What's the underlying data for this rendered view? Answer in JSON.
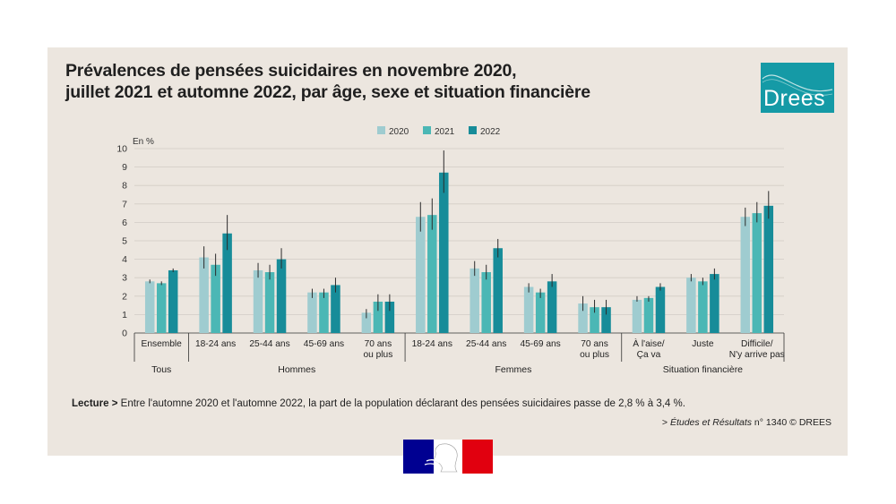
{
  "title": {
    "line1": "Prévalences de pensées suicidaires en novembre 2020,",
    "line2": "juillet 2021 et automne 2022, par âge, sexe et situation financière"
  },
  "logo": {
    "text": "Drees",
    "icon": "drees-logo"
  },
  "colors": {
    "s2020": "#9fccd0",
    "s2021": "#4bb7b5",
    "s2022": "#178c99",
    "error": "#2b2b2b",
    "grid": "#d2ccc5",
    "background": "#ece6df"
  },
  "chart_data": {
    "type": "bar",
    "ylabel": "En %",
    "ylim": [
      0,
      10
    ],
    "yticks": [
      0,
      1,
      2,
      3,
      4,
      5,
      6,
      7,
      8,
      9,
      10
    ],
    "legend": [
      "2020",
      "2021",
      "2022"
    ],
    "legend_position": "top-center",
    "groups": [
      {
        "label": "Tous",
        "categories": [
          {
            "label": [
              "Ensemble"
            ],
            "values": [
              2.8,
              2.7,
              3.4
            ],
            "errors": [
              [
                2.7,
                2.9
              ],
              [
                2.6,
                2.8
              ],
              [
                3.3,
                3.5
              ]
            ]
          }
        ]
      },
      {
        "label": "Hommes",
        "categories": [
          {
            "label": [
              "18-24 ans"
            ],
            "values": [
              4.1,
              3.7,
              5.4
            ],
            "errors": [
              [
                3.5,
                4.7
              ],
              [
                3.1,
                4.3
              ],
              [
                4.5,
                6.4
              ]
            ]
          },
          {
            "label": [
              "25-44 ans"
            ],
            "values": [
              3.4,
              3.3,
              4.0
            ],
            "errors": [
              [
                3.0,
                3.8
              ],
              [
                2.9,
                3.7
              ],
              [
                3.5,
                4.6
              ]
            ]
          },
          {
            "label": [
              "45-69 ans"
            ],
            "values": [
              2.2,
              2.2,
              2.6
            ],
            "errors": [
              [
                1.9,
                2.4
              ],
              [
                1.9,
                2.4
              ],
              [
                2.2,
                3.0
              ]
            ]
          },
          {
            "label": [
              "70 ans",
              "ou plus"
            ],
            "values": [
              1.1,
              1.7,
              1.7
            ],
            "errors": [
              [
                0.8,
                1.3
              ],
              [
                1.2,
                2.1
              ],
              [
                1.2,
                2.1
              ]
            ]
          }
        ]
      },
      {
        "label": "Femmes",
        "categories": [
          {
            "label": [
              "18-24 ans"
            ],
            "values": [
              6.3,
              6.4,
              8.7
            ],
            "errors": [
              [
                5.5,
                7.1
              ],
              [
                5.6,
                7.3
              ],
              [
                7.6,
                9.9
              ]
            ]
          },
          {
            "label": [
              "25-44 ans"
            ],
            "values": [
              3.5,
              3.3,
              4.6
            ],
            "errors": [
              [
                3.1,
                3.9
              ],
              [
                2.9,
                3.7
              ],
              [
                4.1,
                5.1
              ]
            ]
          },
          {
            "label": [
              "45-69 ans"
            ],
            "values": [
              2.5,
              2.2,
              2.8
            ],
            "errors": [
              [
                2.2,
                2.7
              ],
              [
                1.9,
                2.4
              ],
              [
                2.5,
                3.2
              ]
            ]
          },
          {
            "label": [
              "70 ans",
              "ou plus"
            ],
            "values": [
              1.6,
              1.4,
              1.4
            ],
            "errors": [
              [
                1.2,
                2.0
              ],
              [
                1.1,
                1.8
              ],
              [
                1.0,
                1.8
              ]
            ]
          }
        ]
      },
      {
        "label": "Situation financière",
        "categories": [
          {
            "label": [
              "À l'aise/",
              "Ça va"
            ],
            "values": [
              1.8,
              1.9,
              2.5
            ],
            "errors": [
              [
                1.7,
                2.0
              ],
              [
                1.7,
                2.0
              ],
              [
                2.3,
                2.7
              ]
            ]
          },
          {
            "label": [
              "Juste"
            ],
            "values": [
              3.0,
              2.8,
              3.2
            ],
            "errors": [
              [
                2.8,
                3.2
              ],
              [
                2.6,
                3.0
              ],
              [
                2.9,
                3.5
              ]
            ]
          },
          {
            "label": [
              "Difficile/",
              "N'y arrive pas"
            ],
            "values": [
              6.3,
              6.5,
              6.9
            ],
            "errors": [
              [
                5.8,
                6.8
              ],
              [
                6.0,
                7.1
              ],
              [
                6.2,
                7.7
              ]
            ]
          }
        ]
      }
    ]
  },
  "footer": {
    "reading_label": "Lecture >",
    "reading_text": " Entre l'automne 2020 et l'automne 2022, la part de la population déclarant des pensées suicidaires passe de 2,8 % à 3,4 %.",
    "source_prefix": "> ",
    "source_title": "Études et Résultats",
    "source_suffix": " n° 1340 © DREES"
  },
  "emblem": {
    "icon": "marianne-emblem"
  }
}
